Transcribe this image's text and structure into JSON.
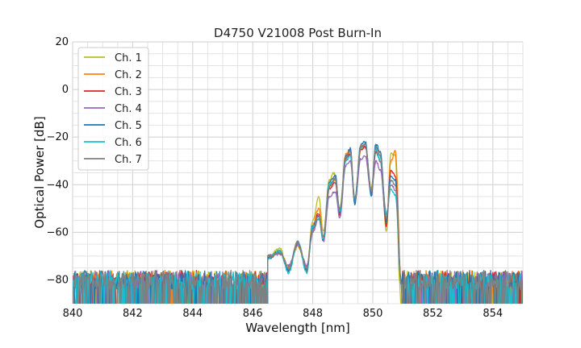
{
  "chart_data": {
    "type": "line",
    "title": "D4750 V21008 Post Burn-In",
    "xlabel": "Wavelength [nm]",
    "ylabel": "Optical Power [dB]",
    "xlim": [
      840,
      855
    ],
    "ylim": [
      -90,
      20
    ],
    "xticks": [
      840,
      842,
      844,
      846,
      848,
      850,
      852,
      854
    ],
    "yticks": [
      20,
      0,
      -20,
      -40,
      -60,
      -80
    ],
    "grid": true,
    "minor_grid": true,
    "legend_position": "top-left",
    "noise_floor_db": -80,
    "series": [
      {
        "name": "Ch. 1",
        "color": "#bcbd22",
        "points": [
          [
            846.5,
            -70
          ],
          [
            846.9,
            -67
          ],
          [
            847.2,
            -75
          ],
          [
            847.5,
            -66
          ],
          [
            847.8,
            -75
          ],
          [
            848.0,
            -55
          ],
          [
            848.2,
            -45
          ],
          [
            848.35,
            -60
          ],
          [
            848.55,
            -38
          ],
          [
            848.7,
            -35
          ],
          [
            848.9,
            -50
          ],
          [
            849.1,
            -28
          ],
          [
            849.25,
            -27
          ],
          [
            849.4,
            -46
          ],
          [
            849.6,
            -25
          ],
          [
            849.75,
            -24
          ],
          [
            849.95,
            -42
          ],
          [
            850.1,
            -24
          ],
          [
            850.25,
            -26
          ],
          [
            850.45,
            -60
          ],
          [
            850.6,
            -27
          ],
          [
            850.75,
            -28
          ],
          [
            850.9,
            -82
          ]
        ]
      },
      {
        "name": "Ch. 2",
        "color": "#ff7f0e",
        "points": [
          [
            846.5,
            -71
          ],
          [
            846.9,
            -68
          ],
          [
            847.2,
            -75
          ],
          [
            847.5,
            -64
          ],
          [
            847.8,
            -75
          ],
          [
            848.0,
            -57
          ],
          [
            848.2,
            -50
          ],
          [
            848.35,
            -62
          ],
          [
            848.55,
            -40
          ],
          [
            848.75,
            -38
          ],
          [
            848.9,
            -52
          ],
          [
            849.1,
            -27
          ],
          [
            849.25,
            -25
          ],
          [
            849.4,
            -47
          ],
          [
            849.6,
            -24
          ],
          [
            849.75,
            -23
          ],
          [
            849.95,
            -42
          ],
          [
            850.1,
            -24
          ],
          [
            850.25,
            -28
          ],
          [
            850.45,
            -58
          ],
          [
            850.6,
            -30
          ],
          [
            850.75,
            -26
          ],
          [
            850.95,
            -82
          ]
        ]
      },
      {
        "name": "Ch. 3",
        "color": "#d62728",
        "points": [
          [
            846.5,
            -71
          ],
          [
            846.9,
            -68
          ],
          [
            847.2,
            -76
          ],
          [
            847.5,
            -65
          ],
          [
            847.8,
            -76
          ],
          [
            848.0,
            -58
          ],
          [
            848.2,
            -52
          ],
          [
            848.35,
            -64
          ],
          [
            848.55,
            -42
          ],
          [
            848.75,
            -39
          ],
          [
            848.9,
            -53
          ],
          [
            849.1,
            -29
          ],
          [
            849.25,
            -27
          ],
          [
            849.4,
            -48
          ],
          [
            849.6,
            -25
          ],
          [
            849.75,
            -24
          ],
          [
            849.95,
            -44
          ],
          [
            850.1,
            -26
          ],
          [
            850.25,
            -30
          ],
          [
            850.45,
            -57
          ],
          [
            850.6,
            -34
          ],
          [
            850.75,
            -36
          ],
          [
            850.95,
            -82
          ]
        ]
      },
      {
        "name": "Ch. 4",
        "color": "#9467bd",
        "points": [
          [
            846.5,
            -70
          ],
          [
            846.9,
            -69
          ],
          [
            847.2,
            -74
          ],
          [
            847.5,
            -65
          ],
          [
            847.8,
            -74
          ],
          [
            848.0,
            -60
          ],
          [
            848.2,
            -54
          ],
          [
            848.35,
            -64
          ],
          [
            848.55,
            -45
          ],
          [
            848.75,
            -43
          ],
          [
            848.9,
            -54
          ],
          [
            849.1,
            -32
          ],
          [
            849.25,
            -30
          ],
          [
            849.4,
            -47
          ],
          [
            849.6,
            -29
          ],
          [
            849.75,
            -28
          ],
          [
            849.95,
            -44
          ],
          [
            850.1,
            -30
          ],
          [
            850.25,
            -34
          ],
          [
            850.45,
            -55
          ],
          [
            850.6,
            -40
          ],
          [
            850.75,
            -42
          ],
          [
            850.95,
            -82
          ]
        ]
      },
      {
        "name": "Ch. 5",
        "color": "#1f77b4",
        "points": [
          [
            846.5,
            -71
          ],
          [
            846.9,
            -68
          ],
          [
            847.2,
            -76
          ],
          [
            847.5,
            -64
          ],
          [
            847.8,
            -76
          ],
          [
            848.0,
            -57
          ],
          [
            848.2,
            -53
          ],
          [
            848.35,
            -63
          ],
          [
            848.55,
            -39
          ],
          [
            848.75,
            -36
          ],
          [
            848.9,
            -52
          ],
          [
            849.1,
            -28
          ],
          [
            849.25,
            -25
          ],
          [
            849.4,
            -48
          ],
          [
            849.6,
            -23
          ],
          [
            849.75,
            -22
          ],
          [
            849.95,
            -45
          ],
          [
            850.1,
            -23
          ],
          [
            850.25,
            -26
          ],
          [
            850.45,
            -56
          ],
          [
            850.6,
            -36
          ],
          [
            850.75,
            -38
          ],
          [
            850.95,
            -82
          ]
        ]
      },
      {
        "name": "Ch. 6",
        "color": "#17becf",
        "points": [
          [
            846.5,
            -71
          ],
          [
            846.9,
            -68
          ],
          [
            847.2,
            -77
          ],
          [
            847.5,
            -64
          ],
          [
            847.8,
            -77
          ],
          [
            848.0,
            -58
          ],
          [
            848.2,
            -54
          ],
          [
            848.35,
            -63
          ],
          [
            848.55,
            -40
          ],
          [
            848.75,
            -38
          ],
          [
            848.9,
            -51
          ],
          [
            849.1,
            -30
          ],
          [
            849.25,
            -28
          ],
          [
            849.4,
            -46
          ],
          [
            849.6,
            -24
          ],
          [
            849.75,
            -23
          ],
          [
            849.95,
            -43
          ],
          [
            850.1,
            -25
          ],
          [
            850.25,
            -30
          ],
          [
            850.45,
            -52
          ],
          [
            850.6,
            -42
          ],
          [
            850.75,
            -44
          ],
          [
            850.95,
            -82
          ]
        ]
      },
      {
        "name": "Ch. 7",
        "color": "#7f7f7f",
        "points": [
          [
            846.5,
            -70
          ],
          [
            846.9,
            -69
          ],
          [
            847.2,
            -75
          ],
          [
            847.5,
            -64
          ],
          [
            847.8,
            -75
          ],
          [
            848.0,
            -59
          ],
          [
            848.2,
            -53
          ],
          [
            848.35,
            -62
          ],
          [
            848.55,
            -41
          ],
          [
            848.75,
            -37
          ],
          [
            848.9,
            -51
          ],
          [
            849.1,
            -29
          ],
          [
            849.25,
            -26
          ],
          [
            849.4,
            -46
          ],
          [
            849.6,
            -24
          ],
          [
            849.75,
            -23
          ],
          [
            849.95,
            -43
          ],
          [
            850.1,
            -24
          ],
          [
            850.25,
            -28
          ],
          [
            850.45,
            -54
          ],
          [
            850.6,
            -38
          ],
          [
            850.75,
            -40
          ],
          [
            850.95,
            -82
          ]
        ]
      }
    ]
  }
}
